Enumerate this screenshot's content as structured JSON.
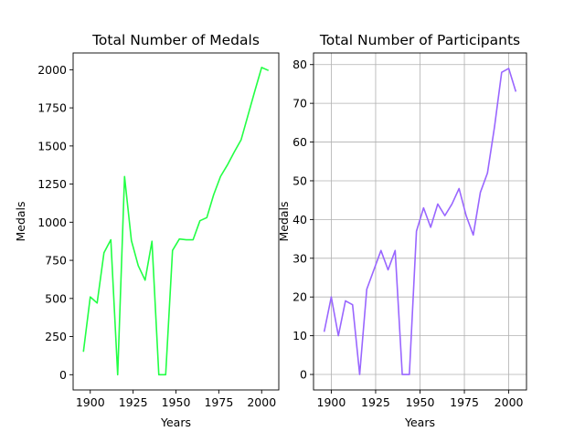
{
  "chart_data": [
    {
      "type": "line",
      "title": "Total Number of Medals",
      "xlabel": "Years",
      "ylabel": "Medals",
      "xlim": [
        1890,
        2010
      ],
      "ylim": [
        -100,
        2110
      ],
      "xticks": [
        1900,
        1925,
        1950,
        1975,
        2000
      ],
      "yticks": [
        0,
        250,
        500,
        750,
        1000,
        1250,
        1500,
        1750,
        2000
      ],
      "grid": false,
      "color": "#22ff44",
      "series": [
        {
          "x": [
            1896,
            1900,
            1904,
            1908,
            1912,
            1916,
            1920,
            1924,
            1928,
            1932,
            1936,
            1940,
            1944,
            1948,
            1952,
            1956,
            1960,
            1964,
            1968,
            1972,
            1976,
            1980,
            1984,
            1988,
            1992,
            1996,
            2000,
            2004
          ],
          "values": [
            150,
            510,
            470,
            800,
            885,
            0,
            1300,
            880,
            715,
            620,
            875,
            0,
            0,
            815,
            890,
            885,
            885,
            1010,
            1030,
            1180,
            1300,
            1375,
            1460,
            1540,
            1700,
            1860,
            2015,
            1995
          ]
        }
      ]
    },
    {
      "type": "line",
      "title": "Total Number of Participants",
      "xlabel": "Years",
      "ylabel": "Medals",
      "xlim": [
        1890,
        2010
      ],
      "ylim": [
        -4,
        83
      ],
      "xticks": [
        1900,
        1925,
        1950,
        1975,
        2000
      ],
      "yticks": [
        0,
        10,
        20,
        30,
        40,
        50,
        60,
        70,
        80
      ],
      "grid": true,
      "color": "#9966ff",
      "series": [
        {
          "x": [
            1896,
            1900,
            1904,
            1908,
            1912,
            1916,
            1920,
            1924,
            1928,
            1932,
            1936,
            1940,
            1944,
            1948,
            1952,
            1956,
            1960,
            1964,
            1968,
            1972,
            1976,
            1980,
            1984,
            1988,
            1992,
            1996,
            2000,
            2004
          ],
          "values": [
            11,
            20,
            10,
            19,
            18,
            0,
            22,
            27,
            32,
            27,
            32,
            0,
            0,
            37,
            43,
            38,
            44,
            41,
            44,
            48,
            41,
            36,
            47,
            52,
            64,
            78,
            79,
            73
          ]
        }
      ]
    }
  ]
}
